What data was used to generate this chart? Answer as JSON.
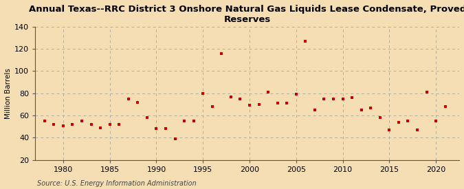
{
  "title": "Annual Texas--RRC District 3 Onshore Natural Gas Liquids Lease Condensate, Proved\nReserves",
  "ylabel": "Million Barrels",
  "source": "Source: U.S. Energy Information Administration",
  "background_color": "#f5deb3",
  "plot_background_color": "#fdf5e6",
  "marker_color": "#cc0000",
  "grid_color": "#b0b0a0",
  "spine_color": "#555555",
  "years": [
    1978,
    1979,
    1980,
    1981,
    1982,
    1983,
    1984,
    1985,
    1986,
    1987,
    1988,
    1989,
    1990,
    1991,
    1992,
    1993,
    1994,
    1995,
    1996,
    1997,
    1998,
    1999,
    2000,
    2001,
    2002,
    2003,
    2004,
    2005,
    2006,
    2007,
    2008,
    2009,
    2010,
    2011,
    2012,
    2013,
    2014,
    2015,
    2016,
    2017,
    2018,
    2019,
    2020,
    2021
  ],
  "values": [
    55,
    52,
    51,
    52,
    55,
    52,
    49,
    52,
    52,
    75,
    72,
    58,
    48,
    48,
    39,
    55,
    55,
    80,
    68,
    116,
    77,
    75,
    69,
    70,
    81,
    71,
    71,
    79,
    127,
    65,
    75,
    75,
    75,
    76,
    65,
    67,
    58,
    47,
    54,
    55,
    47,
    81,
    55,
    68
  ],
  "xlim": [
    1977,
    2022.5
  ],
  "ylim": [
    20,
    140
  ],
  "yticks": [
    20,
    40,
    60,
    80,
    100,
    120,
    140
  ],
  "xticks": [
    1980,
    1985,
    1990,
    1995,
    2000,
    2005,
    2010,
    2015,
    2020
  ],
  "title_fontsize": 9.5,
  "tick_fontsize": 8,
  "ylabel_fontsize": 7.5,
  "source_fontsize": 7
}
